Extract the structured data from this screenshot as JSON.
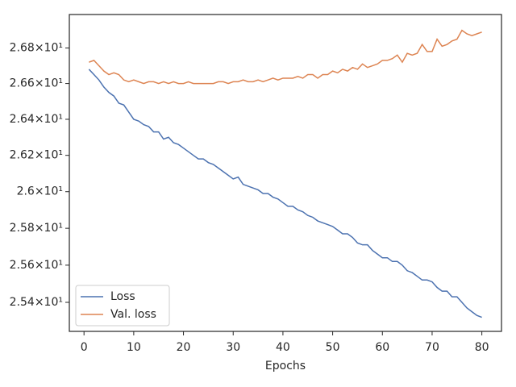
{
  "chart_data": {
    "type": "line",
    "xlabel": "Epochs",
    "x": [
      1,
      2,
      3,
      4,
      5,
      6,
      7,
      8,
      9,
      10,
      11,
      12,
      13,
      14,
      15,
      16,
      17,
      18,
      19,
      20,
      21,
      22,
      23,
      24,
      25,
      26,
      27,
      28,
      29,
      30,
      31,
      32,
      33,
      34,
      35,
      36,
      37,
      38,
      39,
      40,
      41,
      42,
      43,
      44,
      45,
      46,
      47,
      48,
      49,
      50,
      51,
      52,
      53,
      54,
      55,
      56,
      57,
      58,
      59,
      60,
      61,
      62,
      63,
      64,
      65,
      66,
      67,
      68,
      69,
      70,
      71,
      72,
      73,
      74,
      75,
      76,
      77,
      78,
      79,
      80
    ],
    "series": [
      {
        "name": "Loss",
        "color": "#4c72b0",
        "values": [
          26.68,
          26.65,
          26.62,
          26.58,
          26.55,
          26.53,
          26.49,
          26.48,
          26.44,
          26.4,
          26.39,
          26.37,
          26.36,
          26.33,
          26.33,
          26.29,
          26.3,
          26.27,
          26.26,
          26.24,
          26.22,
          26.2,
          26.18,
          26.18,
          26.16,
          26.15,
          26.13,
          26.11,
          26.09,
          26.07,
          26.08,
          26.04,
          26.03,
          26.02,
          26.01,
          25.99,
          25.99,
          25.97,
          25.96,
          25.94,
          25.92,
          25.92,
          25.9,
          25.89,
          25.87,
          25.86,
          25.84,
          25.83,
          25.82,
          25.81,
          25.79,
          25.77,
          25.77,
          25.75,
          25.72,
          25.71,
          25.71,
          25.68,
          25.66,
          25.64,
          25.64,
          25.62,
          25.62,
          25.6,
          25.57,
          25.56,
          25.54,
          25.52,
          25.52,
          25.51,
          25.48,
          25.46,
          25.46,
          25.43,
          25.43,
          25.4,
          25.37,
          25.35,
          25.33,
          25.32
        ]
      },
      {
        "name": "Val. loss",
        "color": "#dd8452",
        "values": [
          26.72,
          26.73,
          26.7,
          26.67,
          26.65,
          26.66,
          26.65,
          26.62,
          26.61,
          26.62,
          26.61,
          26.6,
          26.61,
          26.61,
          26.6,
          26.61,
          26.6,
          26.61,
          26.6,
          26.6,
          26.61,
          26.6,
          26.6,
          26.6,
          26.6,
          26.6,
          26.61,
          26.61,
          26.6,
          26.61,
          26.61,
          26.62,
          26.61,
          26.61,
          26.62,
          26.61,
          26.62,
          26.63,
          26.62,
          26.63,
          26.63,
          26.63,
          26.64,
          26.63,
          26.65,
          26.65,
          26.63,
          26.65,
          26.65,
          26.67,
          26.66,
          26.68,
          26.67,
          26.69,
          26.68,
          26.71,
          26.69,
          26.7,
          26.71,
          26.73,
          26.73,
          26.74,
          26.76,
          26.72,
          26.77,
          26.76,
          26.77,
          26.82,
          26.78,
          26.78,
          26.85,
          26.81,
          26.82,
          26.84,
          26.85,
          26.9,
          26.88,
          26.87,
          26.88,
          26.89
        ]
      }
    ],
    "xlim": [
      -2.95,
      83.95
    ],
    "xticks": [
      0,
      10,
      20,
      30,
      40,
      50,
      60,
      70,
      80
    ],
    "ylim": [
      25.245,
      26.99
    ],
    "yscale": "log",
    "yticks": [
      {
        "value": 25.4,
        "label": "2.54×10¹"
      },
      {
        "value": 25.6,
        "label": "2.56×10¹"
      },
      {
        "value": 25.8,
        "label": "2.58×10¹"
      },
      {
        "value": 26.0,
        "label": "2.6×10¹"
      },
      {
        "value": 26.2,
        "label": "2.62×10¹"
      },
      {
        "value": 26.4,
        "label": "2.64×10¹"
      },
      {
        "value": 26.6,
        "label": "2.66×10¹"
      },
      {
        "value": 26.8,
        "label": "2.68×10¹"
      }
    ],
    "legend": "lower left",
    "grid": false
  }
}
